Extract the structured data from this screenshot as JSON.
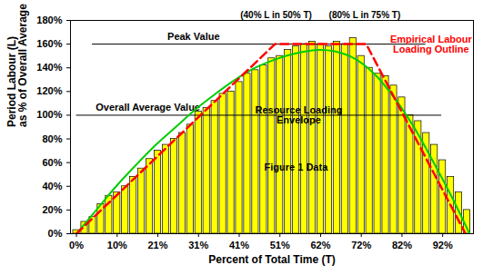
{
  "chart_data": {
    "type": "bar",
    "x_label": "Percent of Total Time (T)",
    "y_label": "Period Labour (L)\nas % of Overall Average",
    "xlim": [
      -1.5,
      100
    ],
    "ylim": [
      0,
      180
    ],
    "xticks": [
      {
        "value": 0,
        "label": "0%"
      },
      {
        "value": 10.25,
        "label": "10%"
      },
      {
        "value": 20.5,
        "label": "21%"
      },
      {
        "value": 30.75,
        "label": "31%"
      },
      {
        "value": 41,
        "label": "41%"
      },
      {
        "value": 51.25,
        "label": "51%"
      },
      {
        "value": 61.5,
        "label": "62%"
      },
      {
        "value": 71.75,
        "label": "72%"
      },
      {
        "value": 82,
        "label": "82%"
      },
      {
        "value": 92.25,
        "label": "92%"
      }
    ],
    "yticks": [
      {
        "value": 0,
        "label": "0%"
      },
      {
        "value": 20,
        "label": "20%"
      },
      {
        "value": 40,
        "label": "40%"
      },
      {
        "value": 60,
        "label": "60%"
      },
      {
        "value": 80,
        "label": "80%"
      },
      {
        "value": 100,
        "label": "100%"
      },
      {
        "value": 120,
        "label": "120%"
      },
      {
        "value": 140,
        "label": "140%"
      },
      {
        "value": 160,
        "label": "160%"
      },
      {
        "value": 180,
        "label": "180%"
      }
    ],
    "grid": false,
    "series": [
      {
        "name": "Figure 1 Data",
        "type": "bar",
        "color": "#ffff00",
        "x": [
          0,
          2.05,
          4.1,
          6.15,
          8.2,
          10.25,
          12.3,
          14.35,
          16.4,
          18.45,
          20.5,
          22.55,
          24.6,
          26.65,
          28.7,
          30.75,
          32.8,
          34.85,
          36.9,
          38.95,
          41,
          43.05,
          45.1,
          47.15,
          49.2,
          51.25,
          53.3,
          55.35,
          57.4,
          59.45,
          61.5,
          63.55,
          65.6,
          67.65,
          69.7,
          71.75,
          73.8,
          75.85,
          77.9,
          79.95,
          82,
          84.05,
          86.1,
          88.15,
          90.2,
          92.25,
          94.3,
          96.35,
          98.4
        ],
        "values": [
          3,
          10,
          14,
          25,
          32,
          35,
          40,
          48,
          55,
          63,
          70,
          75,
          80,
          85,
          92,
          103,
          106,
          112,
          118,
          120,
          128,
          135,
          138,
          142,
          148,
          150,
          155,
          158,
          160,
          162,
          160,
          158,
          162,
          160,
          165,
          150,
          140,
          135,
          133,
          125,
          115,
          100,
          95,
          85,
          75,
          62,
          48,
          35,
          20
        ]
      },
      {
        "name": "Resource Loading Envelope",
        "type": "line",
        "color": "#00cc00",
        "line_style": "solid",
        "x": [
          0,
          5,
          10,
          15,
          20,
          25,
          30,
          35,
          40,
          45,
          50,
          55,
          60,
          65,
          70,
          75,
          80,
          85,
          90,
          95,
          99
        ],
        "values": [
          0,
          20,
          40,
          58,
          75,
          90,
          105,
          118,
          130,
          140,
          147,
          152,
          155,
          154,
          148,
          135,
          115,
          90,
          60,
          28,
          0
        ]
      },
      {
        "name": "Empirical Labour Loading Outline",
        "type": "line",
        "color": "#ff0000",
        "line_style": "dashed",
        "x": [
          0,
          50,
          73,
          98
        ],
        "values": [
          0,
          160,
          160,
          0
        ]
      }
    ],
    "annotations": [
      {
        "text": "Peak Value",
        "y": 160
      },
      {
        "text": "Overall Average Value",
        "y": 100
      },
      {
        "text": "(40% L in 50% T)"
      },
      {
        "text": "(80% L in 75% T)"
      }
    ]
  }
}
